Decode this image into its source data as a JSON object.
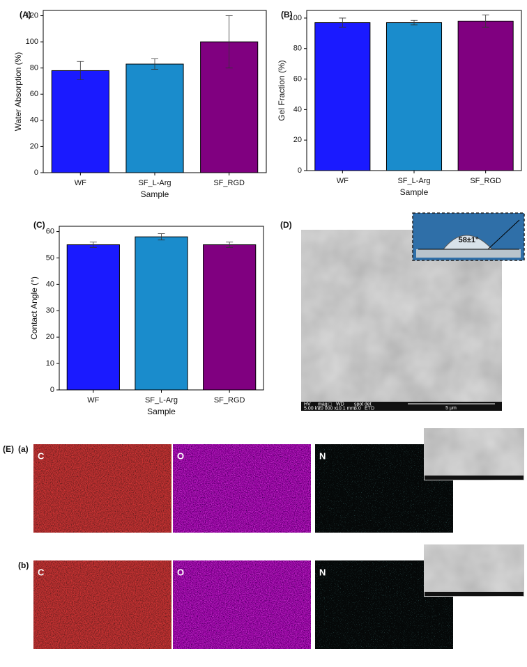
{
  "chart_data": [
    {
      "type": "bar",
      "panel": "(A)",
      "ylabel": "Water Absorption (%)",
      "xlabel": "Sample",
      "categories": [
        "WF",
        "SF_L-Arg",
        "SF_RGD"
      ],
      "values": [
        78,
        83,
        100
      ],
      "errors": [
        7,
        4,
        20
      ],
      "colors": [
        "#1a1aff",
        "#1a8ccc",
        "#800080"
      ],
      "ylim": [
        0,
        124
      ],
      "yticks": [
        0,
        20,
        40,
        60,
        80,
        100,
        120
      ]
    },
    {
      "type": "bar",
      "panel": "(B)",
      "ylabel": "Gel Fraction (%)",
      "xlabel": "Sample",
      "categories": [
        "WF",
        "SF_L-Arg",
        "SF_RGD"
      ],
      "values": [
        97,
        97,
        98
      ],
      "errors": [
        3,
        1.5,
        4
      ],
      "colors": [
        "#1a1aff",
        "#1a8ccc",
        "#800080"
      ],
      "ylim": [
        0,
        105
      ],
      "yticks": [
        0,
        20,
        40,
        60,
        80,
        100
      ]
    },
    {
      "type": "bar",
      "panel": "(C)",
      "ylabel": "Contact Angle (°)",
      "xlabel": "Sample",
      "categories": [
        "WF",
        "SF_L-Arg",
        "SF_RGD"
      ],
      "values": [
        55,
        58,
        55
      ],
      "errors": [
        1,
        1.2,
        1
      ],
      "colors": [
        "#1a1aff",
        "#1a8ccc",
        "#800080"
      ],
      "ylim": [
        0,
        62
      ],
      "yticks": [
        0,
        10,
        20,
        30,
        40,
        50,
        60
      ]
    }
  ],
  "images": {
    "sem": {
      "label": "(D)",
      "info": [
        [
          "HV",
          "5.00 kV"
        ],
        [
          "mag □",
          "20 000 x"
        ],
        [
          "WD",
          "10.1 mm"
        ],
        [
          "spot",
          "3.0"
        ],
        [
          "det",
          "ETD"
        ]
      ],
      "scale": "5 μm",
      "inset": "58±1°"
    },
    "eds": {
      "label": "(E)",
      "rows": [
        {
          "label": "(a)",
          "maps": [
            "C",
            "O",
            "N"
          ]
        },
        {
          "label": "(b)",
          "maps": [
            "C",
            "O",
            "N"
          ]
        }
      ]
    }
  }
}
